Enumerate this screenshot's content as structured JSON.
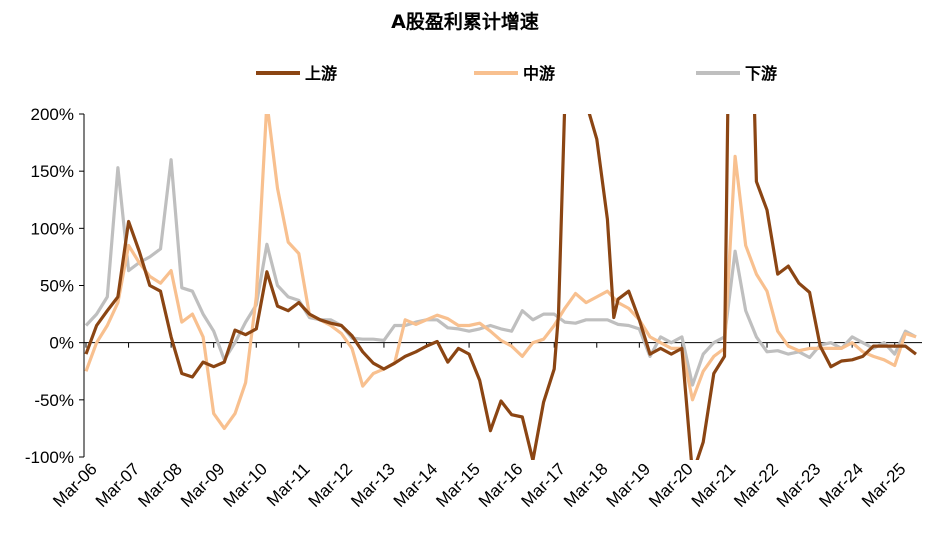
{
  "chart_data": {
    "type": "line",
    "title": "A股盈利累计增速",
    "xlabel": "",
    "ylabel": "",
    "ylim": [
      -100,
      200
    ],
    "yticks": [
      "200%",
      "150%",
      "100%",
      "50%",
      "0%",
      "-50%",
      "-100%"
    ],
    "ytick_values": [
      200,
      150,
      100,
      50,
      0,
      -50,
      -100
    ],
    "xticks": [
      "Mar-06",
      "Mar-07",
      "Mar-08",
      "Mar-09",
      "Mar-10",
      "Mar-11",
      "Mar-12",
      "Mar-13",
      "Mar-14",
      "Mar-15",
      "Mar-16",
      "Mar-17",
      "Mar-18",
      "Mar-19",
      "Mar-20",
      "Mar-21",
      "Mar-22",
      "Mar-23",
      "Mar-24",
      "Mar-25"
    ],
    "xrange": [
      2006.0,
      2025.5
    ],
    "grid": false,
    "legend_position": "top",
    "series": [
      {
        "name": "上游",
        "color": "#8B4513",
        "points": [
          [
            2006.0,
            -10
          ],
          [
            2006.25,
            15
          ],
          [
            2006.5,
            28
          ],
          [
            2006.75,
            40
          ],
          [
            2007.0,
            106
          ],
          [
            2007.25,
            80
          ],
          [
            2007.5,
            50
          ],
          [
            2007.75,
            45
          ],
          [
            2008.0,
            5
          ],
          [
            2008.25,
            -27
          ],
          [
            2008.5,
            -30
          ],
          [
            2008.75,
            -17
          ],
          [
            2009.0,
            -21
          ],
          [
            2009.25,
            -17
          ],
          [
            2009.5,
            11
          ],
          [
            2009.75,
            7
          ],
          [
            2010.0,
            12
          ],
          [
            2010.25,
            62
          ],
          [
            2010.5,
            32
          ],
          [
            2010.75,
            28
          ],
          [
            2011.0,
            35
          ],
          [
            2011.25,
            25
          ],
          [
            2011.5,
            20
          ],
          [
            2011.75,
            17
          ],
          [
            2012.0,
            15
          ],
          [
            2012.25,
            6
          ],
          [
            2012.5,
            -8
          ],
          [
            2012.75,
            -18
          ],
          [
            2013.0,
            -23
          ],
          [
            2013.25,
            -18
          ],
          [
            2013.5,
            -12
          ],
          [
            2013.75,
            -8
          ],
          [
            2014.0,
            -3
          ],
          [
            2014.25,
            1
          ],
          [
            2014.5,
            -17
          ],
          [
            2014.75,
            -5
          ],
          [
            2015.0,
            -10
          ],
          [
            2015.25,
            -33
          ],
          [
            2015.5,
            -77
          ],
          [
            2015.75,
            -51
          ],
          [
            2016.0,
            -63
          ],
          [
            2016.25,
            -65
          ],
          [
            2016.5,
            -103
          ],
          [
            2016.75,
            -52
          ],
          [
            2017.0,
            -23
          ],
          [
            2017.1,
            25
          ],
          [
            2017.25,
            210
          ],
          [
            2017.75,
            210
          ],
          [
            2018.0,
            178
          ],
          [
            2018.25,
            108
          ],
          [
            2018.4,
            22
          ],
          [
            2018.5,
            38
          ],
          [
            2018.75,
            45
          ],
          [
            2019.0,
            20
          ],
          [
            2019.25,
            -10
          ],
          [
            2019.5,
            -5
          ],
          [
            2019.75,
            -10
          ],
          [
            2020.0,
            -5
          ],
          [
            2020.25,
            -115
          ],
          [
            2020.5,
            -87
          ],
          [
            2020.75,
            -27
          ],
          [
            2021.0,
            -12
          ],
          [
            2021.08,
            210
          ],
          [
            2021.7,
            210
          ],
          [
            2021.75,
            141
          ],
          [
            2022.0,
            116
          ],
          [
            2022.25,
            60
          ],
          [
            2022.5,
            67
          ],
          [
            2022.75,
            52
          ],
          [
            2023.0,
            44
          ],
          [
            2023.25,
            -3
          ],
          [
            2023.5,
            -21
          ],
          [
            2023.75,
            -16
          ],
          [
            2024.0,
            -15
          ],
          [
            2024.25,
            -12
          ],
          [
            2024.5,
            -3
          ],
          [
            2024.75,
            -3
          ],
          [
            2025.0,
            -3
          ],
          [
            2025.25,
            -3
          ],
          [
            2025.5,
            -10
          ]
        ]
      },
      {
        "name": "中游",
        "color": "#F8C08F",
        "points": [
          [
            2006.0,
            -25
          ],
          [
            2006.25,
            0
          ],
          [
            2006.5,
            15
          ],
          [
            2006.75,
            35
          ],
          [
            2007.0,
            85
          ],
          [
            2007.25,
            70
          ],
          [
            2007.5,
            58
          ],
          [
            2007.75,
            52
          ],
          [
            2008.0,
            63
          ],
          [
            2008.25,
            18
          ],
          [
            2008.5,
            25
          ],
          [
            2008.75,
            5
          ],
          [
            2009.0,
            -62
          ],
          [
            2009.25,
            -75
          ],
          [
            2009.5,
            -62
          ],
          [
            2009.75,
            -35
          ],
          [
            2010.0,
            40
          ],
          [
            2010.25,
            210
          ],
          [
            2010.5,
            135
          ],
          [
            2010.75,
            88
          ],
          [
            2011.0,
            78
          ],
          [
            2011.25,
            24
          ],
          [
            2011.5,
            20
          ],
          [
            2011.75,
            15
          ],
          [
            2012.0,
            8
          ],
          [
            2012.25,
            -5
          ],
          [
            2012.5,
            -38
          ],
          [
            2012.75,
            -27
          ],
          [
            2013.0,
            -23
          ],
          [
            2013.25,
            -18
          ],
          [
            2013.5,
            20
          ],
          [
            2013.75,
            16
          ],
          [
            2014.0,
            20
          ],
          [
            2014.25,
            24
          ],
          [
            2014.5,
            21
          ],
          [
            2014.75,
            15
          ],
          [
            2015.0,
            15
          ],
          [
            2015.25,
            17
          ],
          [
            2015.5,
            10
          ],
          [
            2015.75,
            2
          ],
          [
            2016.0,
            -3
          ],
          [
            2016.25,
            -12
          ],
          [
            2016.5,
            0
          ],
          [
            2016.75,
            3
          ],
          [
            2017.0,
            15
          ],
          [
            2017.25,
            30
          ],
          [
            2017.5,
            43
          ],
          [
            2017.75,
            35
          ],
          [
            2018.0,
            40
          ],
          [
            2018.25,
            45
          ],
          [
            2018.5,
            35
          ],
          [
            2018.75,
            30
          ],
          [
            2019.0,
            20
          ],
          [
            2019.25,
            5
          ],
          [
            2019.5,
            0
          ],
          [
            2019.75,
            -5
          ],
          [
            2020.0,
            -5
          ],
          [
            2020.25,
            -50
          ],
          [
            2020.5,
            -25
          ],
          [
            2020.75,
            -12
          ],
          [
            2021.0,
            -5
          ],
          [
            2021.25,
            163
          ],
          [
            2021.5,
            85
          ],
          [
            2021.75,
            60
          ],
          [
            2022.0,
            45
          ],
          [
            2022.25,
            10
          ],
          [
            2022.5,
            -3
          ],
          [
            2022.75,
            -7
          ],
          [
            2023.0,
            -5
          ],
          [
            2023.25,
            -5
          ],
          [
            2023.5,
            -5
          ],
          [
            2023.75,
            -5
          ],
          [
            2024.0,
            0
          ],
          [
            2024.25,
            -8
          ],
          [
            2024.5,
            -12
          ],
          [
            2024.75,
            -15
          ],
          [
            2025.0,
            -20
          ],
          [
            2025.25,
            8
          ],
          [
            2025.5,
            5
          ]
        ]
      },
      {
        "name": "下游",
        "color": "#BFBFBF",
        "points": [
          [
            2006.0,
            15
          ],
          [
            2006.25,
            25
          ],
          [
            2006.5,
            40
          ],
          [
            2006.75,
            153
          ],
          [
            2007.0,
            63
          ],
          [
            2007.25,
            70
          ],
          [
            2007.5,
            75
          ],
          [
            2007.75,
            82
          ],
          [
            2008.0,
            160
          ],
          [
            2008.25,
            48
          ],
          [
            2008.5,
            45
          ],
          [
            2008.75,
            25
          ],
          [
            2009.0,
            10
          ],
          [
            2009.25,
            -15
          ],
          [
            2009.5,
            0
          ],
          [
            2009.75,
            18
          ],
          [
            2010.0,
            33
          ],
          [
            2010.25,
            86
          ],
          [
            2010.5,
            50
          ],
          [
            2010.75,
            40
          ],
          [
            2011.0,
            37
          ],
          [
            2011.25,
            22
          ],
          [
            2011.5,
            20
          ],
          [
            2011.75,
            20
          ],
          [
            2012.0,
            15
          ],
          [
            2012.25,
            4
          ],
          [
            2012.5,
            3
          ],
          [
            2012.75,
            3
          ],
          [
            2013.0,
            2
          ],
          [
            2013.25,
            15
          ],
          [
            2013.5,
            15
          ],
          [
            2013.75,
            18
          ],
          [
            2014.0,
            20
          ],
          [
            2014.25,
            20
          ],
          [
            2014.5,
            13
          ],
          [
            2014.75,
            12
          ],
          [
            2015.0,
            10
          ],
          [
            2015.25,
            12
          ],
          [
            2015.5,
            15
          ],
          [
            2015.75,
            12
          ],
          [
            2016.0,
            10
          ],
          [
            2016.25,
            28
          ],
          [
            2016.5,
            20
          ],
          [
            2016.75,
            25
          ],
          [
            2017.0,
            25
          ],
          [
            2017.25,
            18
          ],
          [
            2017.5,
            17
          ],
          [
            2017.75,
            20
          ],
          [
            2018.0,
            20
          ],
          [
            2018.25,
            20
          ],
          [
            2018.5,
            16
          ],
          [
            2018.75,
            15
          ],
          [
            2019.0,
            12
          ],
          [
            2019.25,
            -12
          ],
          [
            2019.5,
            5
          ],
          [
            2019.75,
            0
          ],
          [
            2020.0,
            5
          ],
          [
            2020.25,
            -37
          ],
          [
            2020.5,
            -10
          ],
          [
            2020.75,
            0
          ],
          [
            2021.0,
            5
          ],
          [
            2021.25,
            80
          ],
          [
            2021.5,
            28
          ],
          [
            2021.75,
            5
          ],
          [
            2022.0,
            -8
          ],
          [
            2022.25,
            -7
          ],
          [
            2022.5,
            -10
          ],
          [
            2022.75,
            -8
          ],
          [
            2023.0,
            -13
          ],
          [
            2023.25,
            -2
          ],
          [
            2023.5,
            0
          ],
          [
            2023.75,
            -5
          ],
          [
            2024.0,
            5
          ],
          [
            2024.25,
            0
          ],
          [
            2024.5,
            -5
          ],
          [
            2024.75,
            0
          ],
          [
            2025.0,
            -10
          ],
          [
            2025.25,
            10
          ],
          [
            2025.5,
            5
          ]
        ]
      }
    ]
  }
}
